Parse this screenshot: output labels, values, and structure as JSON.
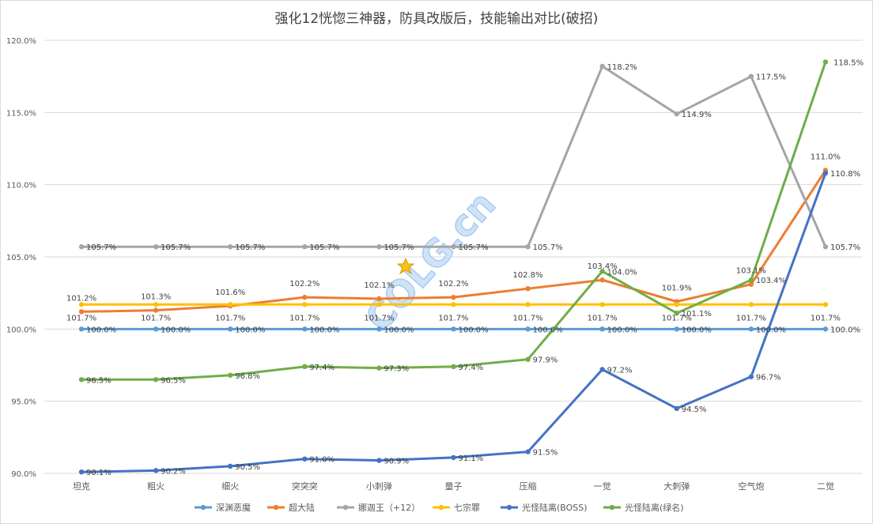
{
  "chart_data": {
    "type": "line",
    "title": "强化12恍惚三神器，防具改版后，技能输出对比(破招)",
    "categories": [
      "坦克",
      "粗火",
      "细火",
      "突突突",
      "小刺弹",
      "量子",
      "压缩",
      "一觉",
      "大刺弹",
      "空气炮",
      "二觉"
    ],
    "ylim": [
      90,
      120
    ],
    "yticks": [
      "90.0%",
      "95.0%",
      "100.0%",
      "105.0%",
      "110.0%",
      "115.0%",
      "120.0%"
    ],
    "grid": true,
    "legend_position": "bottom",
    "series": [
      {
        "name": "深渊恶魔",
        "color": "#5b9bd5",
        "values": [
          100.0,
          100.0,
          100.0,
          100.0,
          100.0,
          100.0,
          100.0,
          100.0,
          100.0,
          100.0,
          100.0
        ],
        "labels": [
          "100.0%",
          "100.0%",
          "100.0%",
          "100.0%",
          "100.0%",
          "100.0%",
          "100.0%",
          "100.0%",
          "100.0%",
          "100.0%",
          "100.0%"
        ]
      },
      {
        "name": "超大陆",
        "color": "#ed7d31",
        "values": [
          101.2,
          101.3,
          101.6,
          102.2,
          102.1,
          102.2,
          102.8,
          103.4,
          101.9,
          103.1,
          111.0
        ],
        "labels": [
          "101.2%",
          "101.3%",
          "101.6%",
          "102.2%",
          "102.1%",
          "102.2%",
          "102.8%",
          "103.4%",
          "101.9%",
          "103.1%",
          "111.0%"
        ]
      },
      {
        "name": "娜迦王（+12）",
        "color": "#a5a5a5",
        "values": [
          105.7,
          105.7,
          105.7,
          105.7,
          105.7,
          105.7,
          105.7,
          118.2,
          114.9,
          117.5,
          105.7
        ],
        "labels": [
          "105.7%",
          "105.7%",
          "105.7%",
          "105.7%",
          "105.7%",
          "105.7%",
          "105.7%",
          "118.2%",
          "114.9%",
          "117.5%",
          "105.7%"
        ]
      },
      {
        "name": "七宗罪",
        "color": "#ffc000",
        "values": [
          101.7,
          101.7,
          101.7,
          101.7,
          101.7,
          101.7,
          101.7,
          101.7,
          101.7,
          101.7,
          101.7
        ],
        "labels": [
          "101.7%",
          "101.7%",
          "101.7%",
          "101.7%",
          "101.7%",
          "101.7%",
          "101.7%",
          "101.7%",
          "101.7%",
          "101.7%",
          "101.7%"
        ]
      },
      {
        "name": "光怪陆离(BOSS)",
        "color": "#4472c4",
        "values": [
          90.1,
          90.2,
          90.5,
          91.0,
          90.9,
          91.1,
          91.5,
          97.2,
          94.5,
          96.7,
          110.8
        ],
        "labels": [
          "90.1%",
          "90.2%",
          "90.5%",
          "91.0%",
          "90.9%",
          "91.1%",
          "91.5%",
          "97.2%",
          "94.5%",
          "96.7%",
          "110.8%"
        ]
      },
      {
        "name": "光怪陆离(绿名)",
        "color": "#70ad47",
        "values": [
          96.5,
          96.5,
          96.8,
          97.4,
          97.3,
          97.4,
          97.9,
          104.0,
          101.1,
          103.4,
          118.5
        ],
        "labels": [
          "96.5%",
          "96.5%",
          "96.8%",
          "97.4%",
          "97.3%",
          "97.4%",
          "97.9%",
          "104.0%",
          "101.1%",
          "103.4%",
          "118.5%"
        ]
      }
    ]
  },
  "watermark": {
    "text": "COLG.cn",
    "color": "#cfe3f8"
  }
}
